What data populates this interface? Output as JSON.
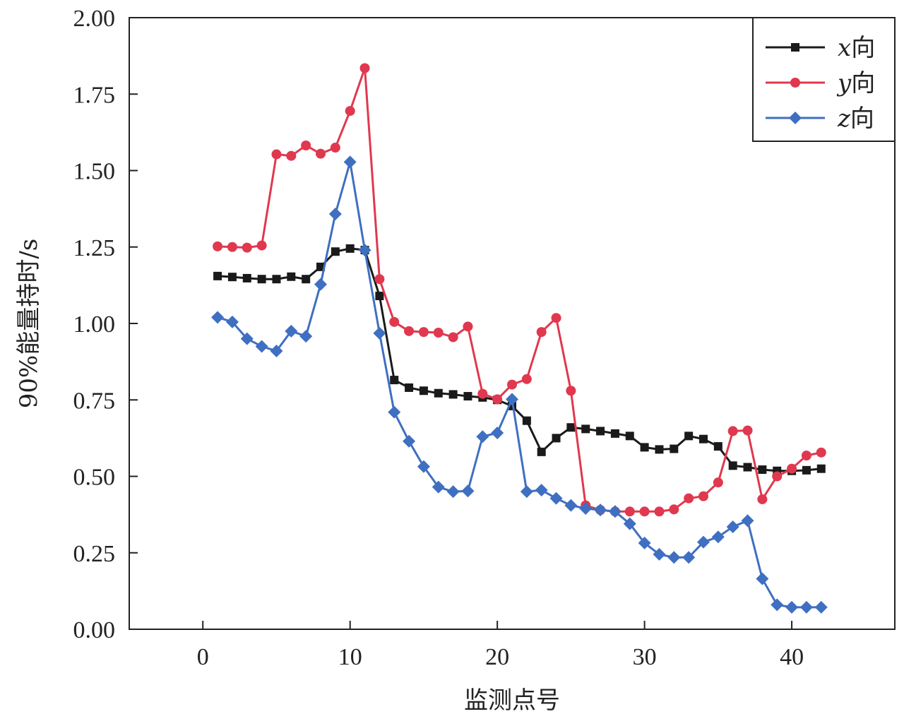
{
  "chart_data": {
    "type": "line",
    "xlabel": "监测点号",
    "ylabel": "90%能量持时/s",
    "xlim": [
      -5,
      47
    ],
    "ylim": [
      0,
      2
    ],
    "xticks": [
      0,
      10,
      20,
      30,
      40
    ],
    "xtick_labels": [
      "0",
      "10",
      "20",
      "30",
      "40"
    ],
    "yticks": [
      0,
      0.25,
      0.5,
      0.75,
      1.0,
      1.25,
      1.5,
      1.75,
      2.0
    ],
    "ytick_labels": [
      "0.00",
      "0.25",
      "0.50",
      "0.75",
      "1.00",
      "1.25",
      "1.50",
      "1.75",
      "2.00"
    ],
    "legend_position": "top-right",
    "grid": false,
    "x": [
      1,
      2,
      3,
      4,
      5,
      6,
      7,
      8,
      9,
      10,
      11,
      12,
      13,
      14,
      15,
      16,
      17,
      18,
      19,
      20,
      21,
      22,
      23,
      24,
      25,
      26,
      27,
      28,
      29,
      30,
      31,
      32,
      33,
      34,
      35,
      36,
      37,
      38,
      39,
      40,
      41,
      42
    ],
    "series": [
      {
        "name": "x向",
        "name_var": "x",
        "name_suffix": "向",
        "color": "#1a1a1a",
        "marker": "square",
        "values": [
          1.155,
          1.152,
          1.148,
          1.145,
          1.145,
          1.153,
          1.145,
          1.185,
          1.235,
          1.245,
          1.24,
          1.09,
          0.815,
          0.79,
          0.78,
          0.772,
          0.768,
          0.762,
          0.758,
          0.75,
          0.73,
          0.682,
          0.58,
          0.625,
          0.66,
          0.655,
          0.648,
          0.64,
          0.632,
          0.595,
          0.588,
          0.59,
          0.632,
          0.622,
          0.598,
          0.535,
          0.53,
          0.522,
          0.518,
          0.518,
          0.52,
          0.525
        ]
      },
      {
        "name": "y向",
        "name_var": "y",
        "name_suffix": "向",
        "color": "#e0384f",
        "marker": "circle",
        "values": [
          1.252,
          1.25,
          1.248,
          1.255,
          1.553,
          1.548,
          1.582,
          1.555,
          1.575,
          1.695,
          1.835,
          1.145,
          1.005,
          0.975,
          0.972,
          0.97,
          0.955,
          0.99,
          0.77,
          0.752,
          0.8,
          0.818,
          0.972,
          1.018,
          0.78,
          0.405,
          0.39,
          0.385,
          0.385,
          0.385,
          0.385,
          0.392,
          0.428,
          0.435,
          0.48,
          0.648,
          0.65,
          0.425,
          0.5,
          0.525,
          0.568,
          0.578
        ]
      },
      {
        "name": "z向",
        "name_var": "z",
        "name_suffix": "向",
        "color": "#3f6fc1",
        "marker": "diamond",
        "values": [
          1.02,
          1.005,
          0.95,
          0.925,
          0.91,
          0.975,
          0.958,
          1.128,
          1.358,
          1.528,
          1.24,
          0.968,
          0.71,
          0.615,
          0.532,
          0.465,
          0.45,
          0.452,
          0.63,
          0.642,
          0.752,
          0.45,
          0.455,
          0.428,
          0.405,
          0.395,
          0.39,
          0.385,
          0.345,
          0.282,
          0.245,
          0.235,
          0.235,
          0.285,
          0.302,
          0.335,
          0.355,
          0.165,
          0.08,
          0.072,
          0.072,
          0.072
        ]
      }
    ]
  }
}
